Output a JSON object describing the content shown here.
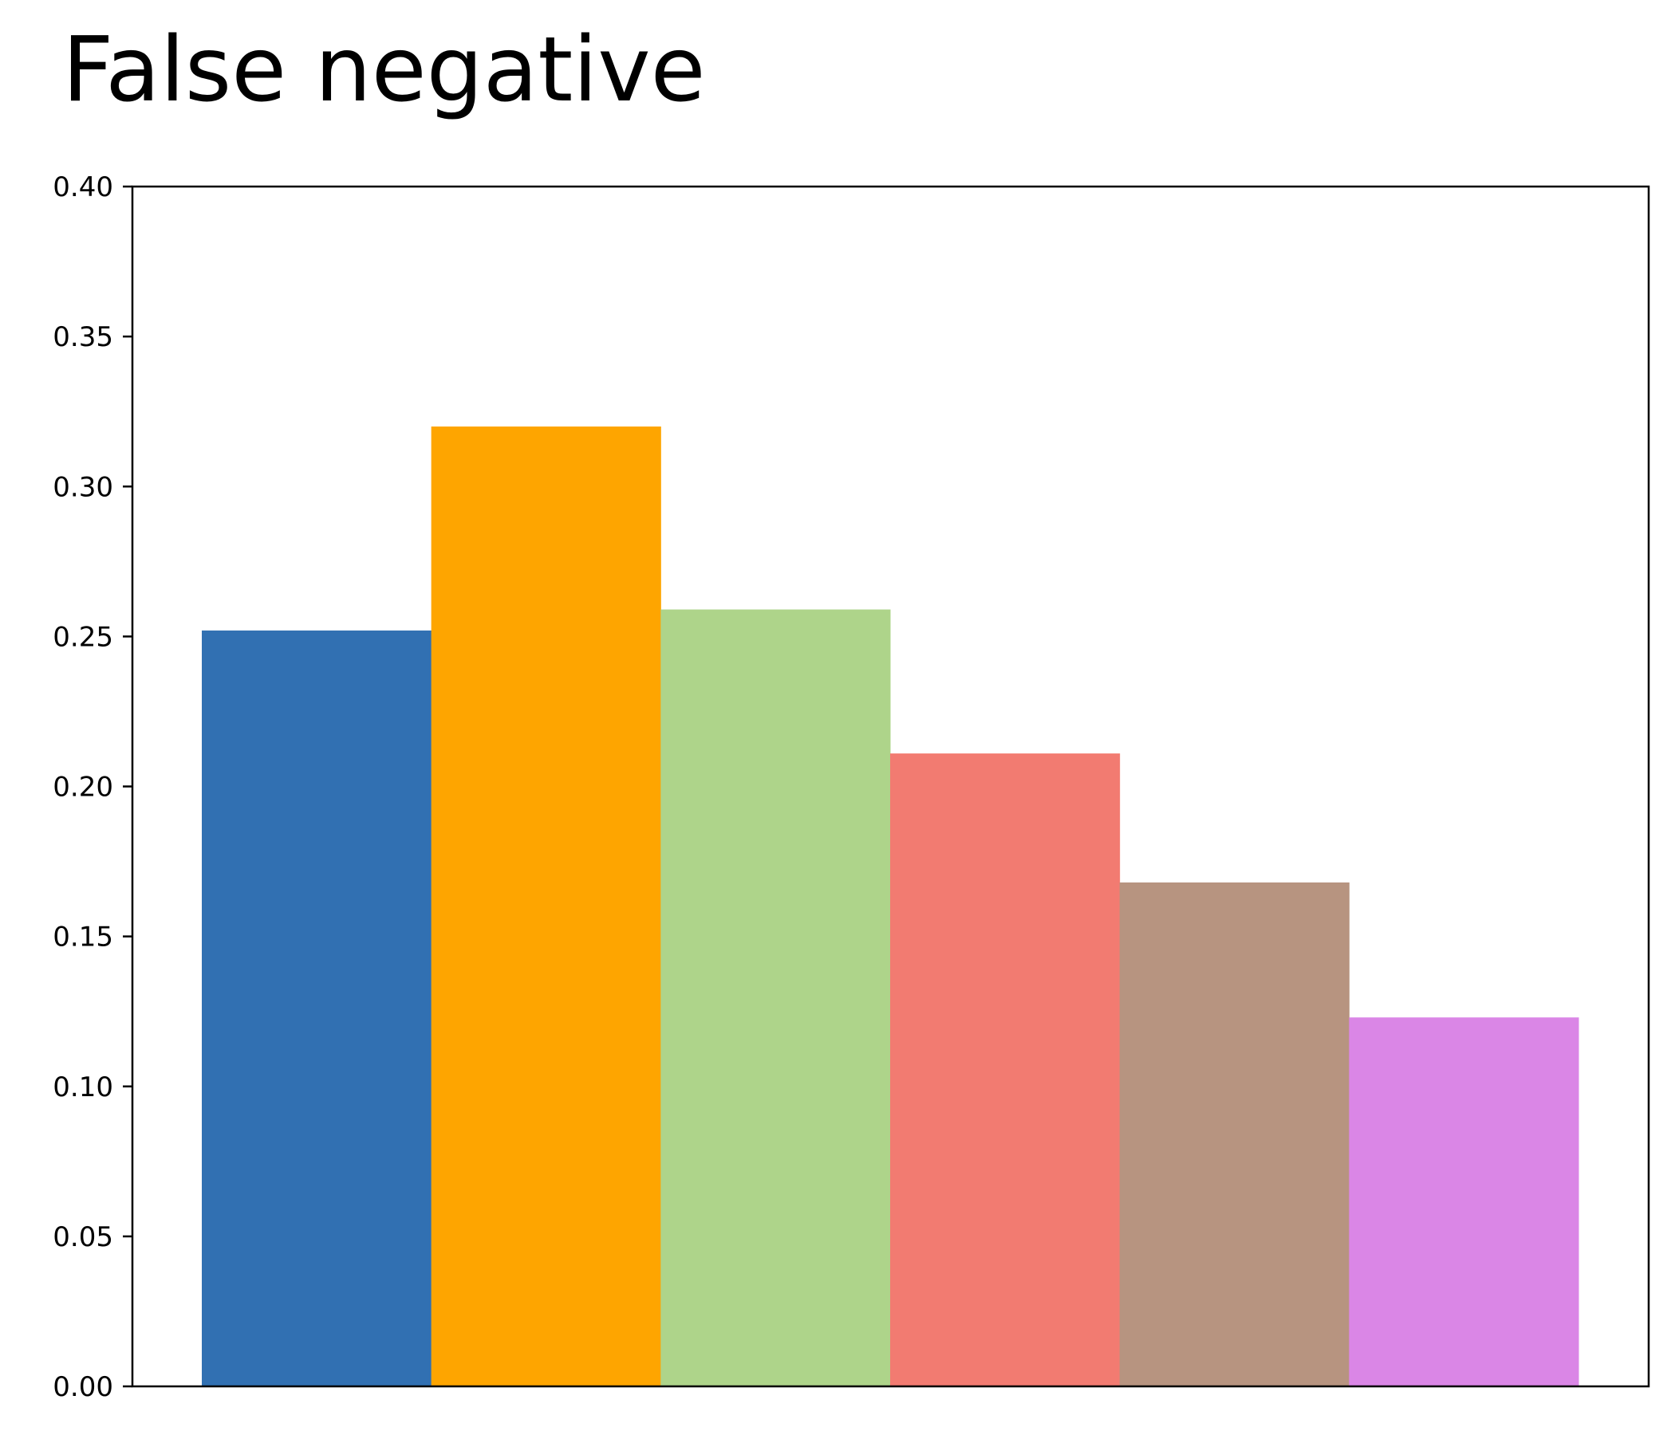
{
  "chart_data": {
    "type": "bar",
    "title": "False negative",
    "xlabel": "",
    "ylabel": "",
    "ylim": [
      0,
      0.4
    ],
    "yticks": [
      "0.00",
      "0.05",
      "0.10",
      "0.15",
      "0.20",
      "0.25",
      "0.30",
      "0.35",
      "0.40"
    ],
    "grid": false,
    "values": [
      0.252,
      0.32,
      0.259,
      0.211,
      0.168,
      0.123
    ],
    "colors": [
      "#3170b2",
      "#fea500",
      "#aed48a",
      "#f27b71",
      "#b79480",
      "#da86e6"
    ]
  }
}
